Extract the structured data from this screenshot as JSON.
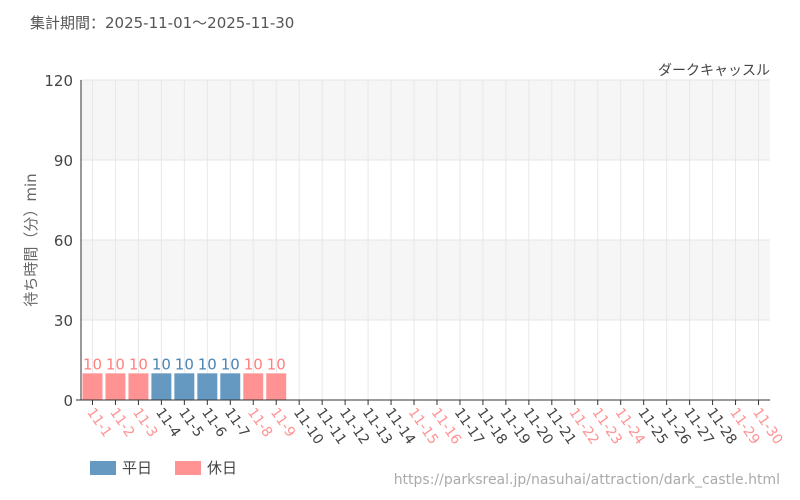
{
  "period_label": "集計期間：2025-11-01〜2025-11-30",
  "source_url": "https://parksreal.jp/nasuhai/attraction/dark_castle.html",
  "colors": {
    "weekday": "#6699c2",
    "holiday": "#ff9393",
    "weekday_label": "#4a84b4",
    "holiday_label": "#ff8080"
  },
  "chart_data": {
    "type": "bar",
    "title": "ダークキャッスル",
    "ylabel": "待ち時間（分）min",
    "xlabel": "",
    "ylim": [
      0,
      120
    ],
    "yticks": [
      0,
      30,
      60,
      90,
      120
    ],
    "grid": true,
    "legend_placement": "bottom-left",
    "legend": [
      {
        "name": "平日",
        "key": "weekday"
      },
      {
        "name": "休日",
        "key": "holiday"
      }
    ],
    "categories": [
      "11-1",
      "11-2",
      "11-3",
      "11-4",
      "11-5",
      "11-6",
      "11-7",
      "11-8",
      "11-9",
      "11-10",
      "11-11",
      "11-12",
      "11-13",
      "11-14",
      "11-15",
      "11-16",
      "11-17",
      "11-18",
      "11-19",
      "11-20",
      "11-21",
      "11-22",
      "11-23",
      "11-24",
      "11-25",
      "11-26",
      "11-27",
      "11-28",
      "11-29",
      "11-30"
    ],
    "holiday": [
      true,
      true,
      true,
      false,
      false,
      false,
      false,
      true,
      true,
      false,
      false,
      false,
      false,
      false,
      true,
      true,
      false,
      false,
      false,
      false,
      false,
      true,
      true,
      true,
      false,
      false,
      false,
      false,
      true,
      true
    ],
    "values": [
      10,
      10,
      10,
      10,
      10,
      10,
      10,
      10,
      10,
      null,
      null,
      null,
      null,
      null,
      null,
      null,
      null,
      null,
      null,
      null,
      null,
      null,
      null,
      null,
      null,
      null,
      null,
      null,
      null,
      null
    ]
  }
}
